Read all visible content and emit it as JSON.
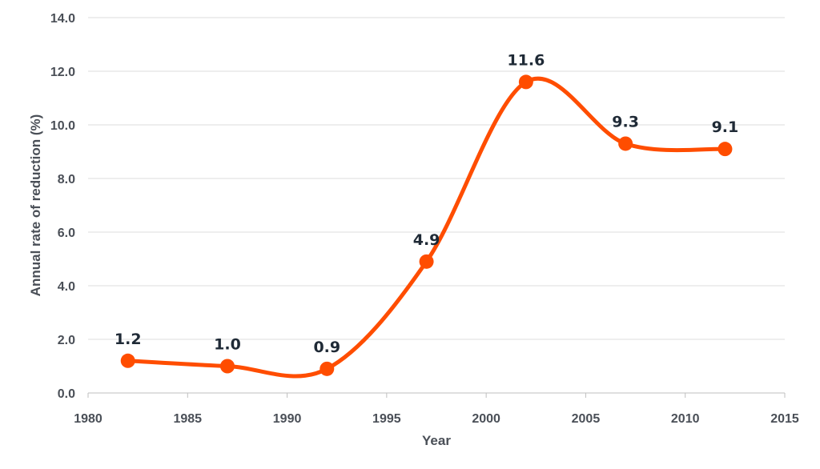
{
  "chart_data": {
    "type": "line",
    "title": "",
    "xlabel": "Year",
    "ylabel": "Annual rate of reduction (%)",
    "xlim": [
      1980,
      2015
    ],
    "ylim": [
      0,
      14
    ],
    "x_ticks": [
      "1980",
      "1985",
      "1990",
      "1995",
      "2000",
      "2005",
      "2010",
      "2015"
    ],
    "y_ticks": [
      "0.0",
      "2.0",
      "4.0",
      "6.0",
      "8.0",
      "10.0",
      "12.0",
      "14.0"
    ],
    "grid": true,
    "smooth": true,
    "series": [
      {
        "color": "#ff4d00",
        "x": [
          1982,
          1987,
          1992,
          1997,
          2002,
          2007,
          2012
        ],
        "y": [
          1.2,
          1.0,
          0.9,
          4.9,
          11.6,
          9.3,
          9.1
        ],
        "labels": [
          "1.2",
          "1.0",
          "0.9",
          "4.9",
          "11.6",
          "9.3",
          "9.1"
        ]
      }
    ]
  }
}
